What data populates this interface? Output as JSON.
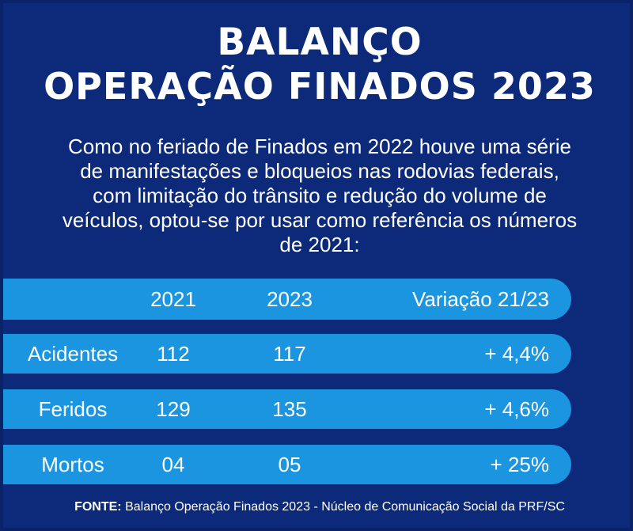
{
  "title": {
    "line1": "BALANÇO",
    "line2": "OPERAÇÃO FINADOS 2023"
  },
  "intro": "Como no feriado de Finados em 2022 houve uma série de manifestações e bloqueios nas rodovias federais, com limitação do trânsito e redução do volume de veículos, optou-se por usar como referência os números de 2021:",
  "table": {
    "headers": [
      "",
      "2021",
      "2023",
      "Variação 21/23"
    ],
    "rows": [
      {
        "label": "Acidentes",
        "y2021": "112",
        "y2023": "117",
        "variation": "+ 4,4%"
      },
      {
        "label": "Feridos",
        "y2021": "129",
        "y2023": "135",
        "variation": "+ 4,6%"
      },
      {
        "label": "Mortos",
        "y2021": "04",
        "y2023": "05",
        "variation": "+ 25%"
      }
    ]
  },
  "source": {
    "label": "FONTE:",
    "text": "Balanço Operação Finados 2023 - Núcleo de Comunicação Social da PRF/SC"
  },
  "colors": {
    "background": "#0d2a7a",
    "row": "#1b95e0",
    "text": "#ffffff"
  }
}
